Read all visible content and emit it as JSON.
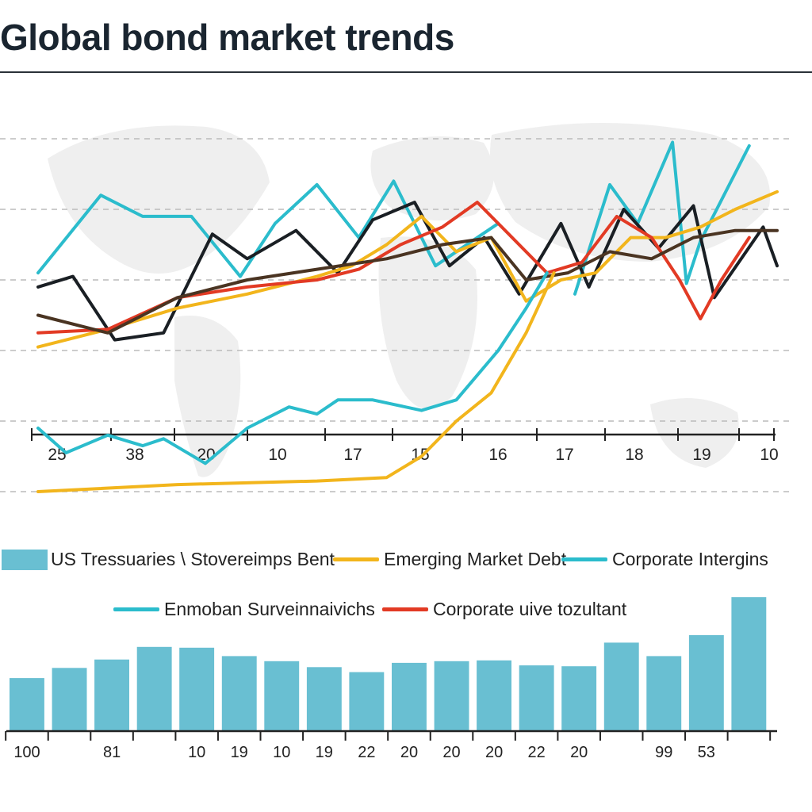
{
  "title": "Global bond market trends",
  "colors": {
    "teal": "#2bbccc",
    "yellow": "#f2b51c",
    "orange": "#f5a53a",
    "red": "#e23a24",
    "black": "#1a1f24",
    "brown": "#4a3422",
    "olive": "#9aa06a",
    "bar": "#69bfd2",
    "grid": "#bbbbbb",
    "map": "#efefef"
  },
  "legend": [
    {
      "label": "US Tressuaries \\ Stovereimps Bent",
      "kind": "box",
      "color": "#69bfd2"
    },
    {
      "label": "Emerging Market Debt",
      "kind": "line",
      "color": "#f2b51c"
    },
    {
      "label": "Corporate Intergins",
      "kind": "line",
      "color": "#2bbccc"
    },
    {
      "label": "Enmoban Surveinnaivichs",
      "kind": "line",
      "color": "#2bbccc"
    },
    {
      "label": "Corporate uive tozultant",
      "kind": "line",
      "color": "#e23a24"
    }
  ],
  "chart_data": [
    {
      "type": "line",
      "title": "Global bond market trends",
      "x_tick_labels": [
        "25",
        "38",
        "20",
        "10",
        "17",
        "15",
        "16",
        "17",
        "18",
        "19",
        "10"
      ],
      "ylim": [
        0,
        100
      ],
      "grid": true,
      "series": [
        {
          "name": "Corporate Intergins (upper)",
          "color": "#2bbccc",
          "x": [
            0,
            0.9,
            1.5,
            2.2,
            2.9,
            3.4,
            4.0,
            4.6,
            5.1,
            5.7,
            6.6
          ],
          "y": [
            62,
            84,
            78,
            78,
            61,
            76,
            87,
            72,
            88,
            64,
            76
          ]
        },
        {
          "name": "Corporate Intergins (right)",
          "color": "#2bbccc",
          "x": [
            7.7,
            8.2,
            8.6,
            9.1,
            9.3,
            9.5,
            10.2
          ],
          "y": [
            56,
            87,
            76,
            99,
            59,
            71,
            98
          ]
        },
        {
          "name": "Black series",
          "color": "#1a1f24",
          "x": [
            0,
            0.5,
            1.1,
            1.8,
            2.5,
            3.0,
            3.7,
            4.3,
            4.8,
            5.4,
            5.9,
            6.4,
            6.9,
            7.5,
            7.9,
            8.4,
            8.9,
            9.4,
            9.7,
            10.4,
            10.6
          ],
          "y": [
            58,
            61,
            43,
            45,
            73,
            66,
            74,
            62,
            77,
            82,
            64,
            72,
            56,
            76,
            58,
            80,
            69,
            81,
            55,
            75,
            64
          ]
        },
        {
          "name": "Emerging Market Debt",
          "color": "#f2b51c",
          "x": [
            0,
            1.0,
            2.0,
            3.0,
            4.0,
            4.5,
            5.0,
            5.5,
            6.0,
            6.5,
            7.0,
            7.5,
            8.0,
            8.5,
            9.0,
            9.5,
            10.0,
            10.6
          ],
          "y": [
            41,
            46,
            52,
            56,
            61,
            64,
            70,
            78,
            68,
            72,
            54,
            60,
            62,
            72,
            72,
            75,
            80,
            85
          ]
        },
        {
          "name": "Corporate uive tozultant",
          "color": "#e23a24",
          "x": [
            0,
            1.0,
            2.0,
            3.0,
            4.0,
            4.6,
            5.2,
            5.8,
            6.3,
            6.8,
            7.3,
            7.8,
            8.3,
            8.8,
            9.2,
            9.5,
            9.8,
            10.2
          ],
          "y": [
            45,
            46,
            55,
            58,
            60,
            63,
            70,
            75,
            82,
            72,
            62,
            65,
            78,
            72,
            60,
            49,
            60,
            72
          ]
        },
        {
          "name": "Brown series",
          "color": "#4a3422",
          "x": [
            0,
            1.0,
            2.0,
            3.0,
            4.0,
            5.0,
            5.8,
            6.5,
            7.0,
            7.6,
            8.2,
            8.8,
            9.4,
            10.0,
            10.6
          ],
          "y": [
            50,
            45,
            55,
            60,
            63,
            66,
            70,
            72,
            60,
            62,
            68,
            66,
            72,
            74,
            74
          ]
        },
        {
          "name": "Enmoban Surveinnaivichs",
          "color": "#2bbccc",
          "x": [
            0,
            0.4,
            1.0,
            1.5,
            1.8,
            2.4,
            3.0,
            3.6,
            4.0,
            4.3,
            4.8,
            5.5,
            6.0,
            6.6,
            7.0,
            7.3
          ],
          "y": [
            18,
            11,
            16,
            13,
            15,
            8,
            18,
            24,
            22,
            26,
            26,
            23,
            26,
            40,
            52,
            62
          ]
        },
        {
          "name": "Yellow baseline",
          "color": "#f2b51c",
          "x": [
            0,
            2.0,
            4.0,
            5.0,
            5.5,
            6.0,
            6.5,
            7.0,
            7.4
          ],
          "y": [
            0,
            2,
            3,
            4,
            10,
            20,
            28,
            45,
            62
          ]
        }
      ]
    },
    {
      "type": "bar",
      "values": [
        63,
        75,
        85,
        100,
        99,
        89,
        83,
        76,
        70,
        81,
        83,
        84,
        78,
        77,
        105,
        89,
        114,
        159
      ],
      "x_tick_labels": [
        "100",
        "",
        "81",
        "",
        "10",
        "19",
        "10",
        "19",
        "22",
        "20",
        "20",
        "20",
        "22",
        "20",
        "",
        "99",
        "53",
        ""
      ],
      "ylim": [
        0,
        160
      ]
    }
  ]
}
